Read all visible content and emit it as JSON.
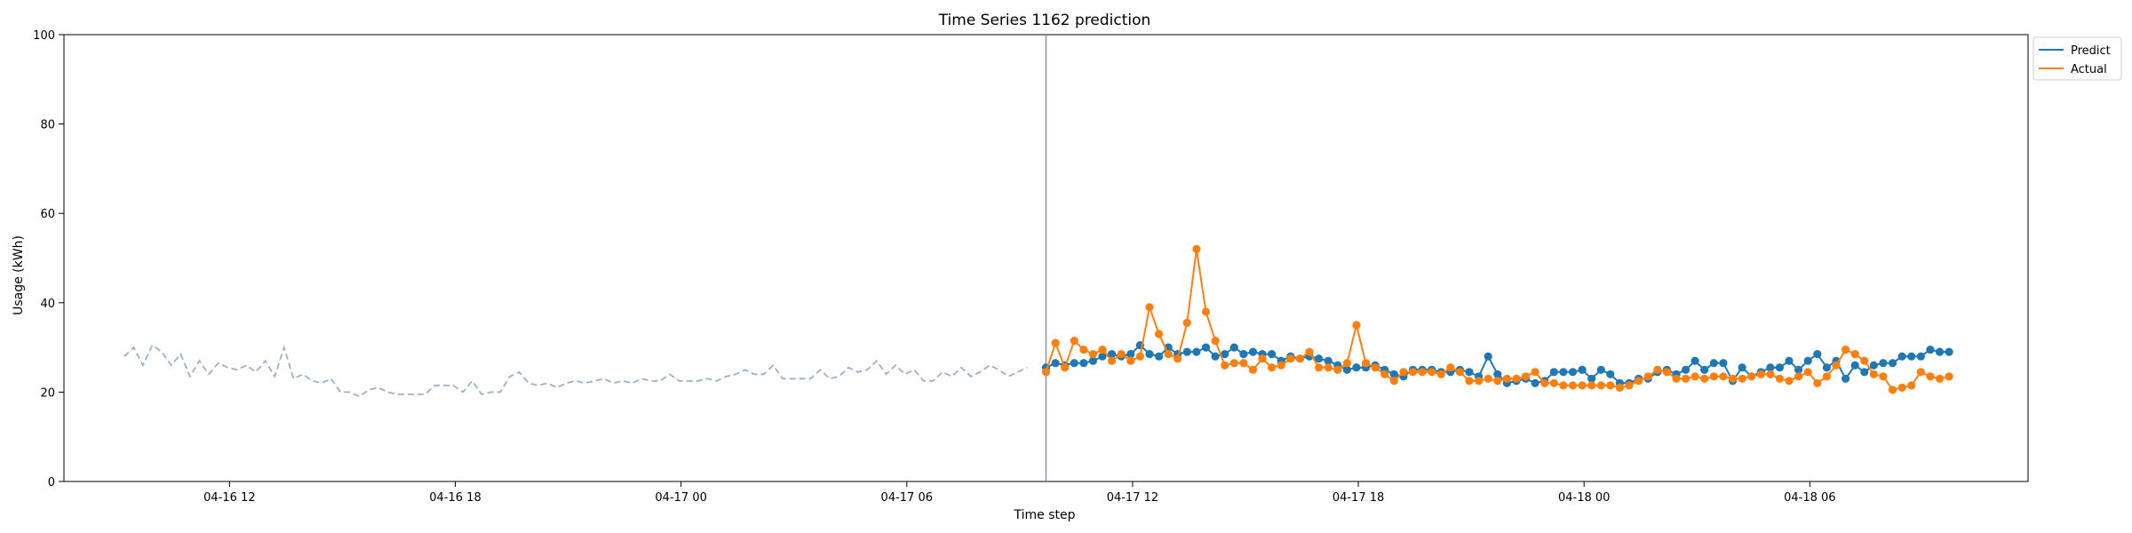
{
  "chart_data": {
    "type": "line",
    "title": "Time Series 1162 prediction",
    "xlabel": "Time step",
    "ylabel": "Usage (kWh)",
    "ylim": [
      0,
      100
    ],
    "yticks": [
      0,
      20,
      40,
      60,
      80,
      100
    ],
    "x_axis": {
      "type": "datetime",
      "start": "2024-04-16T09:12",
      "step_minutes": 15,
      "range": [
        "2024-04-16T07:36",
        "2024-04-18T11:48"
      ],
      "ticks": [
        {
          "t": "2024-04-16T12:00",
          "label": "04-16 12"
        },
        {
          "t": "2024-04-16T18:00",
          "label": "04-16 18"
        },
        {
          "t": "2024-04-17T00:00",
          "label": "04-17 00"
        },
        {
          "t": "2024-04-17T06:00",
          "label": "04-17 06"
        },
        {
          "t": "2024-04-17T12:00",
          "label": "04-17 12"
        },
        {
          "t": "2024-04-17T18:00",
          "label": "04-17 18"
        },
        {
          "t": "2024-04-18T00:00",
          "label": "04-18 00"
        },
        {
          "t": "2024-04-18T06:00",
          "label": "04-18 06"
        }
      ]
    },
    "forecast_start": "2024-04-17T09:42",
    "history": [
      28,
      30,
      26,
      30.5,
      29,
      26,
      28.5,
      23.5,
      27,
      24,
      26.5,
      25.5,
      25,
      26,
      24.5,
      27,
      23.5,
      30,
      23,
      24,
      22.5,
      22,
      23,
      20,
      20,
      19,
      20.5,
      21,
      20,
      19.5,
      19.5,
      19.5,
      19.5,
      21.5,
      21.5,
      21.5,
      20,
      22.5,
      19.5,
      20,
      20,
      23.5,
      24.5,
      22,
      21.5,
      22,
      21,
      22,
      22.5,
      22,
      22.5,
      23,
      22,
      22.5,
      22,
      23,
      22.5,
      22.5,
      24,
      22.5,
      22.5,
      22.5,
      23,
      22.5,
      23.5,
      24,
      25,
      24,
      24,
      26,
      23,
      23,
      23,
      23,
      25,
      23,
      23.5,
      25.5,
      24.5,
      25,
      27,
      24,
      26,
      24,
      25,
      22.5,
      22.5,
      24.5,
      23.5,
      25.5,
      23.5,
      24.5,
      26,
      25,
      23.5,
      24.5,
      25.5
    ],
    "series": [
      {
        "name": "Predict",
        "color": "#1f77b4",
        "values": [
          25.5,
          26.5,
          26,
          26.5,
          26.5,
          27,
          28,
          28.5,
          28,
          28.5,
          30.5,
          28.5,
          28,
          30,
          28.5,
          29,
          29,
          30,
          28,
          28.5,
          30,
          28.5,
          29,
          28.5,
          28.5,
          27,
          28,
          27.5,
          28,
          27.5,
          27,
          26,
          25,
          25.5,
          25.5,
          26,
          25,
          24,
          23.5,
          25,
          25,
          25,
          24.5,
          24.5,
          25,
          24.5,
          23.5,
          28,
          24,
          22,
          22.5,
          23,
          22,
          22.5,
          24.5,
          24.5,
          24.5,
          25,
          23,
          25,
          24,
          22,
          22,
          23,
          23,
          24.5,
          25,
          24,
          25,
          27,
          25,
          26.5,
          26.5,
          22.5,
          25.5,
          23.5,
          24.5,
          25.5,
          25.5,
          27,
          25,
          27,
          28.5,
          25.5,
          27,
          23,
          26,
          24.5,
          26,
          26.5,
          26.5,
          28,
          28,
          28,
          29.5,
          29,
          29
        ]
      },
      {
        "name": "Actual",
        "color": "#ff7f0e",
        "values": [
          24.5,
          31,
          25.5,
          31.5,
          29.5,
          28.5,
          29.5,
          27,
          28.5,
          27,
          28,
          39,
          33,
          28.5,
          27.5,
          35.5,
          52,
          38,
          31.5,
          26,
          26.5,
          26.5,
          25,
          27.5,
          25.5,
          26,
          27.5,
          27.5,
          29,
          25.5,
          25.5,
          25,
          26.5,
          35,
          26.5,
          25.5,
          24,
          22.5,
          24.5,
          24.5,
          24.5,
          24.5,
          24,
          25.5,
          24.5,
          22.5,
          22.5,
          23,
          22.5,
          23,
          23,
          23.5,
          24.5,
          22,
          22,
          21.5,
          21.5,
          21.5,
          21.5,
          21.5,
          21.5,
          21,
          21.5,
          22.5,
          23.5,
          25,
          24.5,
          23,
          23,
          23.5,
          23,
          23.5,
          23.5,
          23,
          23,
          23.5,
          24,
          24,
          23,
          22.5,
          23.5,
          24.5,
          22,
          23.5,
          26,
          29.5,
          28.5,
          27,
          24,
          23.5,
          20.5,
          21,
          21.5,
          24.5,
          23.5,
          23,
          23.5
        ]
      }
    ],
    "legend": {
      "placement": "outside-top-right",
      "entries": [
        "Predict",
        "Actual"
      ]
    },
    "grid": false
  }
}
